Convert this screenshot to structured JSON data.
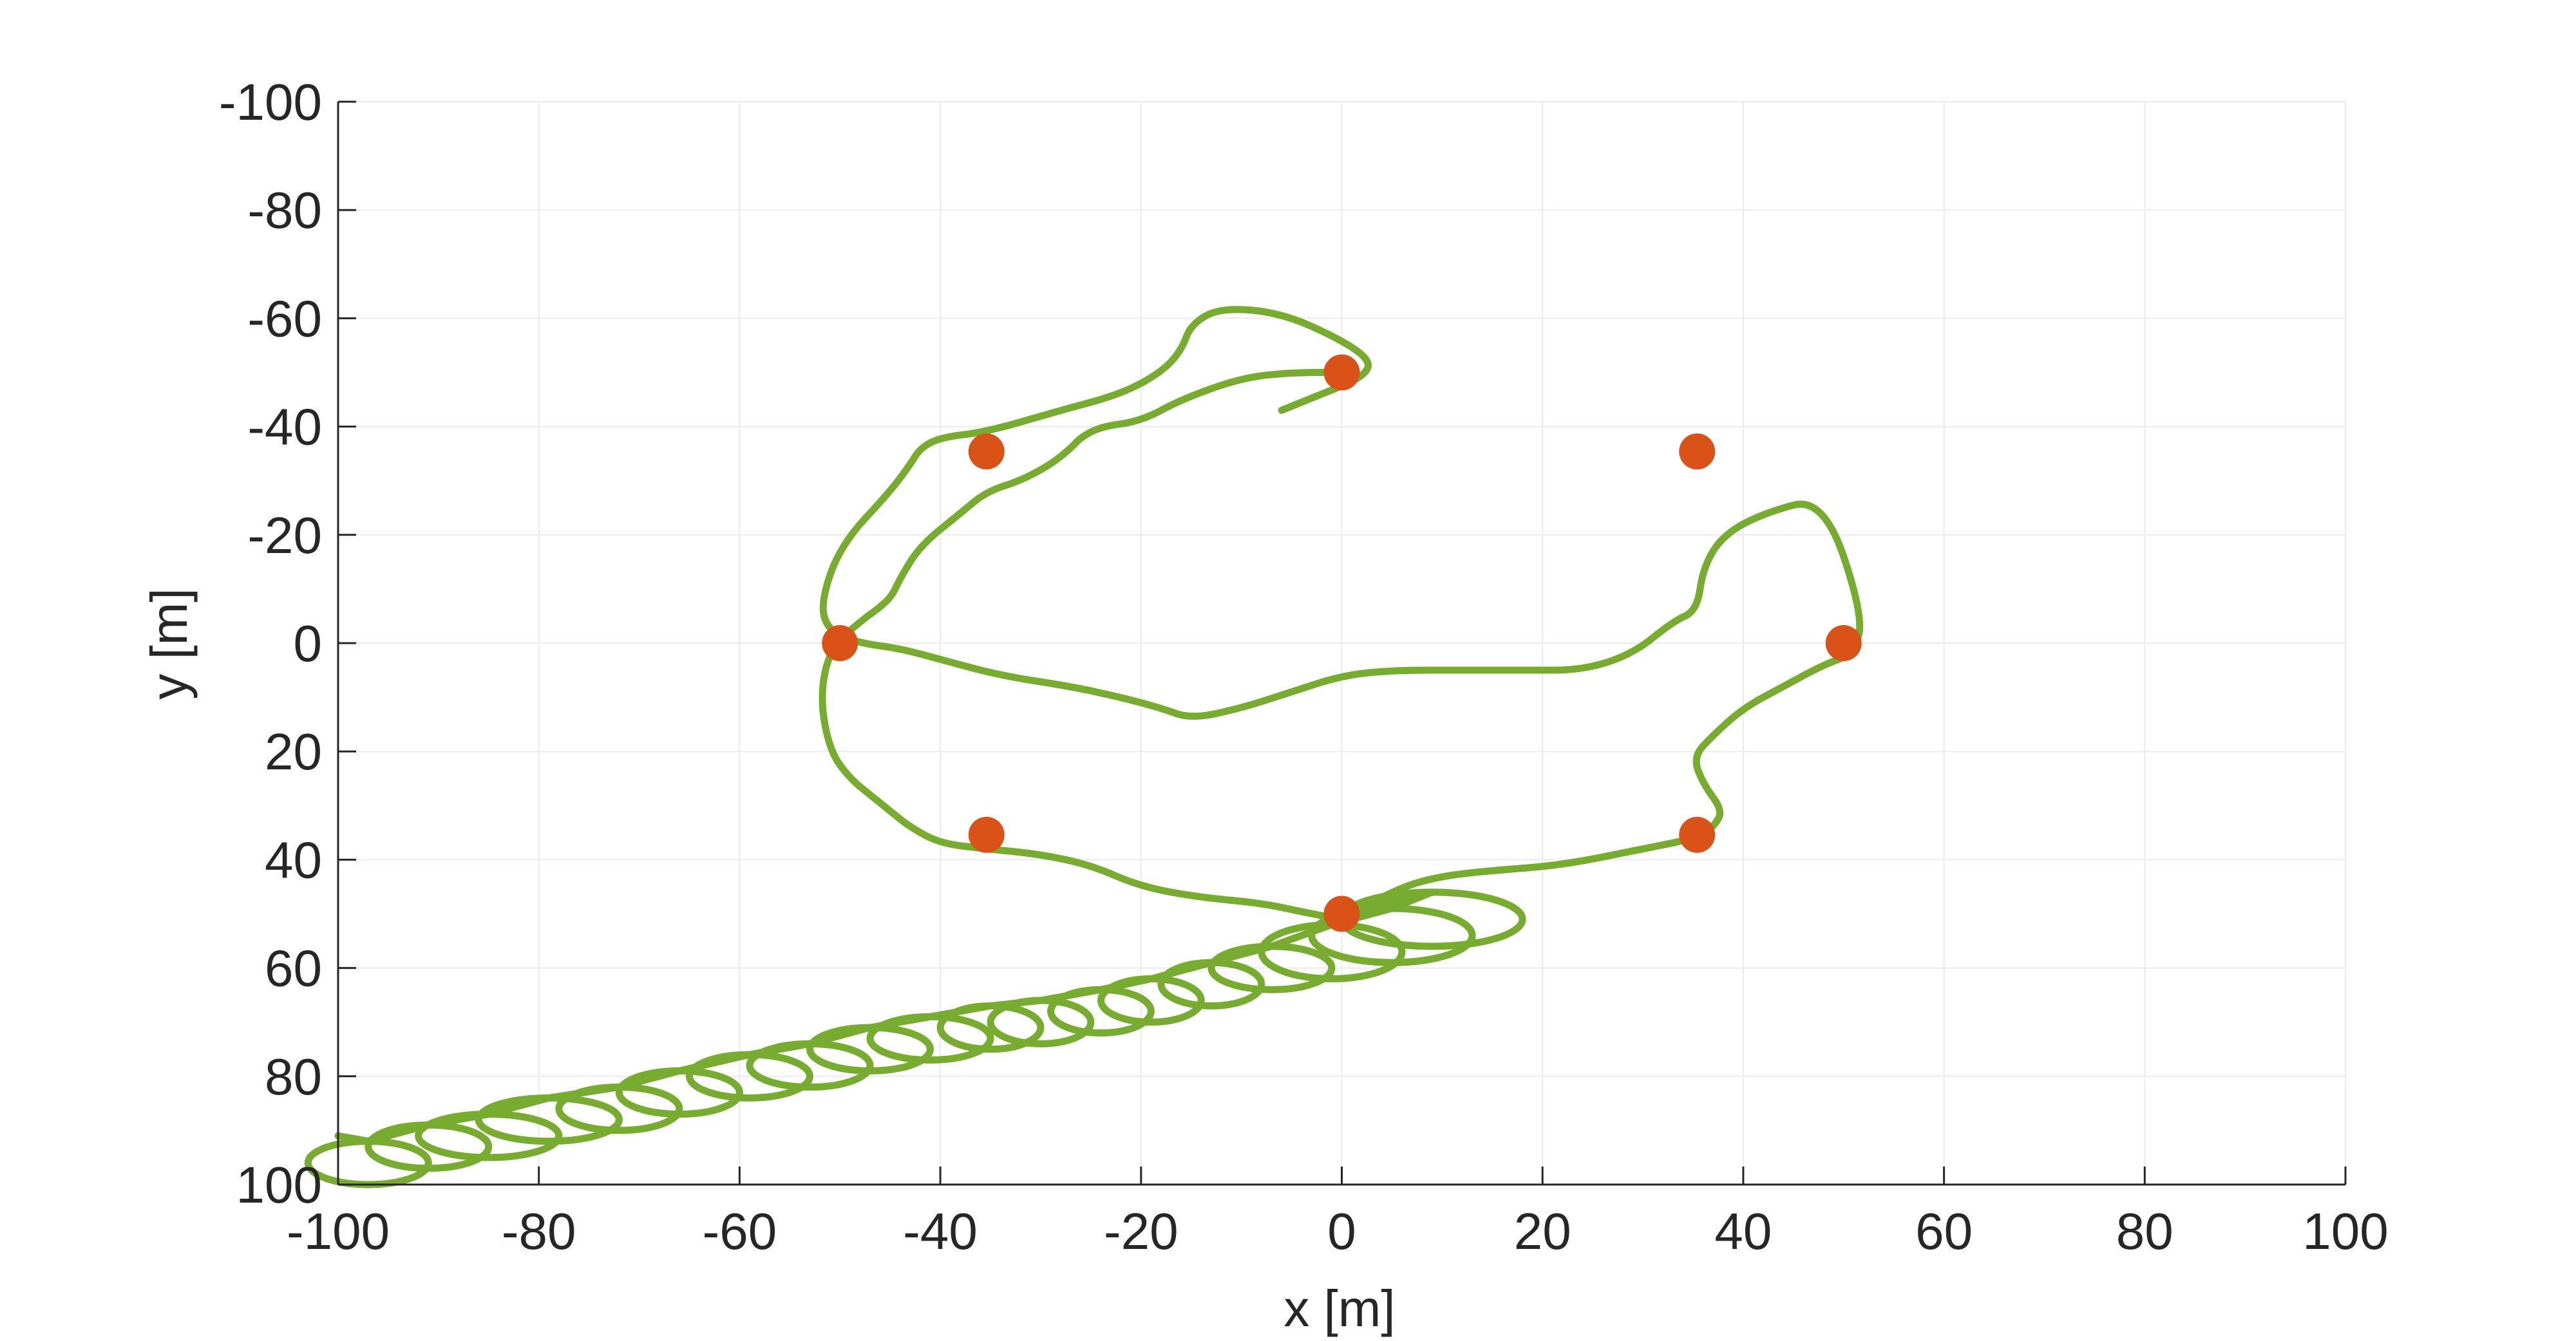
{
  "chart_data": {
    "type": "line",
    "title": "",
    "xlabel": "x [m]",
    "ylabel": "y [m]",
    "xlim": [
      -100,
      100
    ],
    "ylim": [
      -100,
      100
    ],
    "y_axis_reversed": true,
    "grid": true,
    "x_ticks": [
      -100,
      -80,
      -60,
      -40,
      -20,
      0,
      20,
      40,
      60,
      80,
      100
    ],
    "y_ticks": [
      -100,
      -80,
      -60,
      -40,
      -20,
      0,
      20,
      40,
      60,
      80,
      100
    ],
    "colors": {
      "trajectory": "#77AC30",
      "waypoints": "#D95319",
      "axis": "#262626",
      "grid": "#EBEBEB"
    },
    "waypoints": {
      "x": [
        0,
        35.4,
        50,
        35.4,
        0,
        -35.4,
        -50,
        -35.4
      ],
      "y": [
        -50,
        -35.4,
        0,
        35.4,
        50,
        35.4,
        0,
        -35.4
      ]
    },
    "trajectory": {
      "x": [
        -6,
        -2,
        2,
        3,
        0,
        -6,
        -12,
        -15,
        -16,
        -18,
        -22,
        -28,
        -35.4,
        -40,
        -42,
        -43,
        -45,
        -50,
        -52,
        -51,
        -48,
        -44,
        -40,
        -34,
        -27,
        -22,
        -18,
        -15,
        -10,
        -5,
        0,
        5,
        12,
        18,
        24,
        29,
        33,
        35.4,
        36,
        38,
        42,
        48,
        52,
        51,
        48,
        44,
        40,
        37,
        35,
        36,
        38,
        37,
        35.4,
        30,
        22,
        15,
        10,
        6,
        2,
        0,
        -3,
        -8,
        -14,
        -20,
        -25,
        -30,
        -35.4,
        -40,
        -43,
        -45,
        -47,
        -49,
        -51,
        -52,
        -51,
        -48,
        -45,
        -44,
        -42,
        -38,
        -35.4,
        -32,
        -29,
        -27,
        -26,
        -24,
        -20,
        -16,
        -10,
        -5,
        0
      ],
      "y": [
        -43,
        -46,
        -49,
        -52,
        -56,
        -61,
        -62,
        -59,
        -54,
        -50,
        -46,
        -43,
        -39,
        -38,
        -36,
        -33,
        -28,
        -18,
        -7,
        -2,
        0,
        1,
        3,
        6,
        8,
        10,
        12,
        14,
        12,
        9,
        6,
        5,
        5,
        5,
        5,
        2,
        -4,
        -6,
        -14,
        -20,
        -24,
        -27,
        -5,
        2,
        4,
        8,
        12,
        17,
        21,
        26,
        31,
        34,
        36,
        38,
        41,
        42,
        43,
        45,
        49,
        51,
        50,
        48,
        47,
        45,
        41,
        39,
        38,
        37,
        34,
        31,
        28,
        25,
        20,
        10,
        1,
        -4,
        -8,
        -12,
        -18,
        -24,
        -28,
        -30,
        -33,
        -36,
        -38,
        -40,
        -41,
        -45,
        -49,
        -50,
        -50
      ]
    },
    "loops": {
      "centers_x": [
        -97,
        -91,
        -85,
        -79,
        -72,
        -66,
        -59,
        -53,
        -47,
        -41,
        -35,
        -30,
        -24,
        -19,
        -13,
        -7,
        -1,
        5,
        9
      ],
      "centers_y": [
        96,
        93,
        91,
        88,
        86,
        83,
        80,
        78,
        75,
        73,
        71,
        70,
        68,
        66,
        63,
        60,
        57,
        54,
        51
      ],
      "radius_x": [
        6,
        6,
        7,
        7,
        6,
        6,
        6,
        6,
        6,
        6,
        5,
        5,
        5,
        5,
        5,
        6,
        7,
        8,
        9
      ],
      "radius_y": [
        4,
        4,
        4,
        4,
        4,
        4,
        4,
        4,
        4,
        4,
        4,
        4,
        4,
        4,
        4,
        4,
        5,
        5,
        5
      ]
    }
  }
}
